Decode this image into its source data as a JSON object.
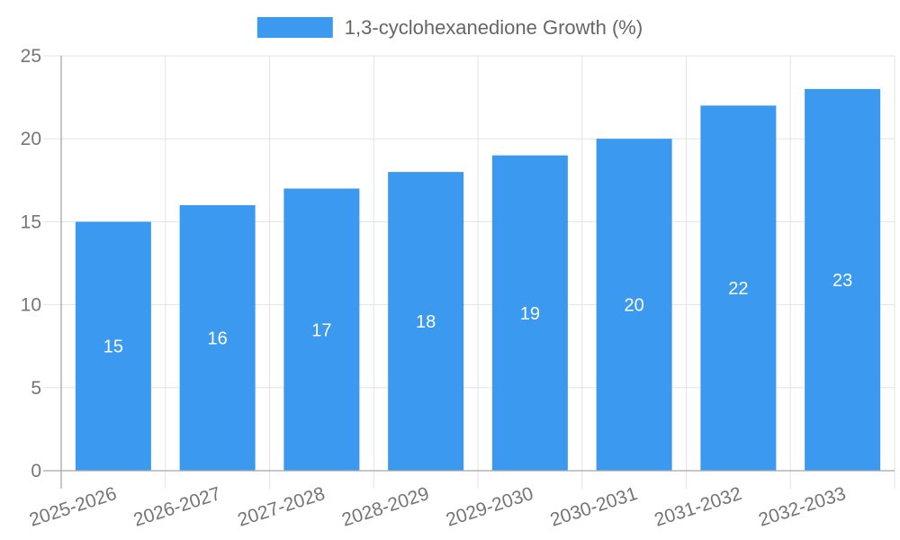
{
  "chart_data": {
    "type": "bar",
    "title": "1,3-cyclohexanedione Growth (%)",
    "legend": {
      "label": "1,3-cyclohexanedione Growth (%)",
      "position": "top-center"
    },
    "categories": [
      "2025-2026",
      "2026-2027",
      "2027-2028",
      "2028-2029",
      "2029-2030",
      "2030-2031",
      "2031-2032",
      "2032-2033"
    ],
    "values": [
      15,
      16,
      17,
      18,
      19,
      20,
      22,
      23
    ],
    "xlabel": "",
    "ylabel": "",
    "ylim": [
      0,
      25
    ],
    "yticks": [
      0,
      5,
      10,
      15,
      20,
      25
    ],
    "grid": true,
    "x_tick_rotation_deg": -18,
    "value_labels": {
      "show": true,
      "position": "inside-center",
      "color": "#ffffff"
    },
    "colors": {
      "bar": "#3b9af0",
      "grid": "#e3e3e3",
      "axis": "#a8a8a8",
      "tick_text": "#757575",
      "legend_text": "#666666",
      "background": "#ffffff"
    }
  }
}
